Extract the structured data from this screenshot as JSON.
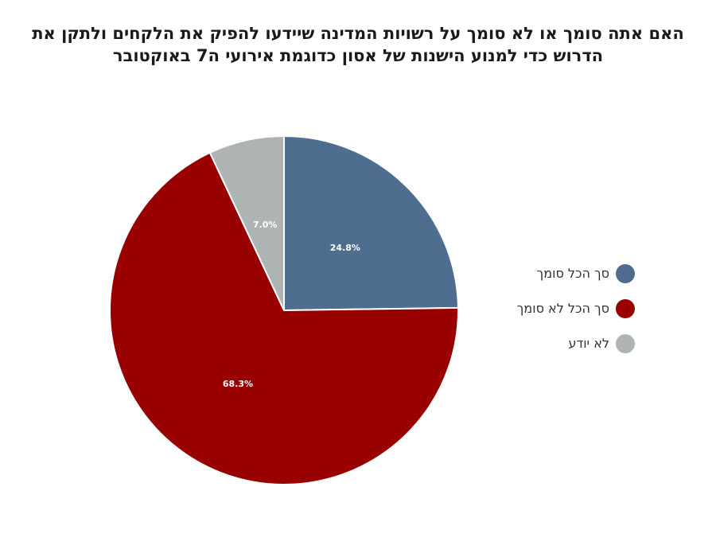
{
  "chart_data": {
    "type": "pie",
    "title": {
      "line1": "האם אתה סומך או לא סומך על רשויות המדינה שיידעו להפיק את הלקחים ולתקן את",
      "line2": "הדרוש כדי למנוע הישנות של אסון כדוגמת אירועי ה7 באוקטובר"
    },
    "slices": [
      {
        "label": "סך הכל סומך",
        "value": 24.8,
        "value_label": "24.8%",
        "color": "#4f6d8f"
      },
      {
        "label": "סך הכל לא סומך",
        "value": 68.3,
        "value_label": "68.3%",
        "color": "#990000"
      },
      {
        "label": "לא יודע",
        "value": 7.0,
        "value_label": "7.0%",
        "color": "#aeb3b4"
      }
    ],
    "legend_position": "right",
    "start_angle": "top",
    "direction": "clockwise"
  }
}
